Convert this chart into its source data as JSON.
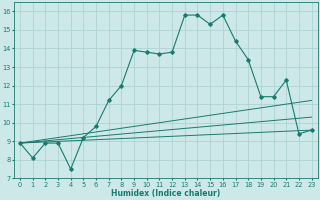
{
  "xlabel": "Humidex (Indice chaleur)",
  "xlim": [
    -0.5,
    23.5
  ],
  "ylim": [
    7.0,
    16.5
  ],
  "yticks": [
    7,
    8,
    9,
    10,
    11,
    12,
    13,
    14,
    15,
    16
  ],
  "xticks": [
    0,
    1,
    2,
    3,
    4,
    5,
    6,
    7,
    8,
    9,
    10,
    11,
    12,
    13,
    14,
    15,
    16,
    17,
    18,
    19,
    20,
    21,
    22,
    23
  ],
  "line_color": "#1a7a6e",
  "bg_color": "#cce8e8",
  "grid_color": "#aacece",
  "main_line": {
    "x": [
      0,
      1,
      2,
      3,
      4,
      5,
      6,
      7,
      8,
      9,
      10,
      11,
      12,
      13,
      14,
      15,
      16,
      17,
      18,
      19,
      20,
      21,
      22,
      23
    ],
    "y": [
      8.9,
      8.1,
      8.9,
      8.9,
      7.5,
      9.2,
      9.8,
      11.2,
      12.0,
      13.9,
      13.8,
      13.7,
      13.8,
      15.8,
      15.8,
      15.3,
      15.8,
      14.4,
      13.4,
      11.4,
      11.4,
      12.3,
      9.4,
      9.6
    ]
  },
  "secondary_lines": [
    {
      "x": [
        0,
        23
      ],
      "y": [
        8.9,
        11.2
      ]
    },
    {
      "x": [
        0,
        23
      ],
      "y": [
        8.9,
        10.3
      ]
    },
    {
      "x": [
        0,
        23
      ],
      "y": [
        8.9,
        9.6
      ]
    }
  ],
  "axis_fontsize": 5.5,
  "tick_fontsize": 4.8
}
